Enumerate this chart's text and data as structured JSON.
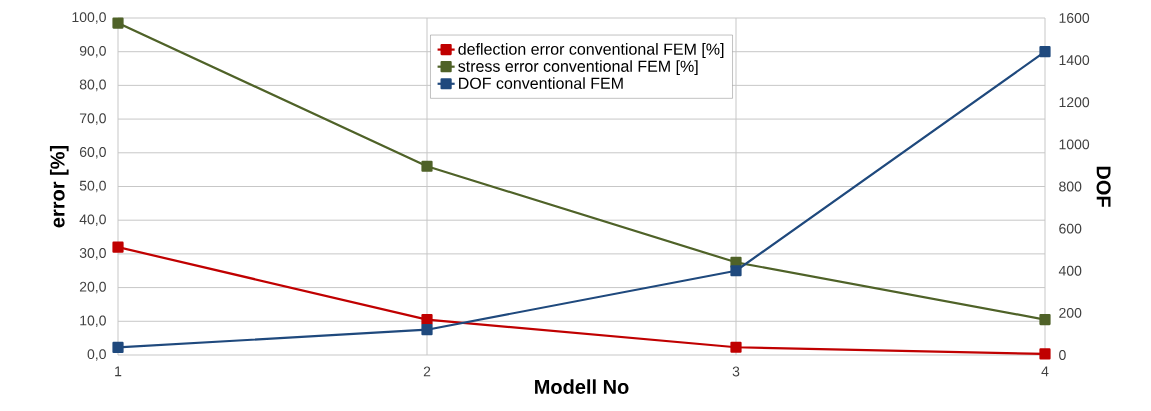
{
  "chart_data": {
    "type": "line",
    "xlabel": "Modell No",
    "ylabel": "error [%]",
    "y2label": "DOF",
    "x": [
      1,
      2,
      3,
      4
    ],
    "xlim": [
      1,
      4
    ],
    "xticks": [
      1,
      2,
      3,
      4
    ],
    "ylim": [
      0,
      100
    ],
    "yticks": [
      {
        "value": 0,
        "label": "0,0"
      },
      {
        "value": 10,
        "label": "10,0"
      },
      {
        "value": 20,
        "label": "20,0"
      },
      {
        "value": 30,
        "label": "30,0"
      },
      {
        "value": 40,
        "label": "40,0"
      },
      {
        "value": 50,
        "label": "50,0"
      },
      {
        "value": 60,
        "label": "60,0"
      },
      {
        "value": 70,
        "label": "70,0"
      },
      {
        "value": 80,
        "label": "80,0"
      },
      {
        "value": 90,
        "label": "90,0"
      },
      {
        "value": 100,
        "label": "100,0"
      }
    ],
    "y2lim": [
      0,
      1600
    ],
    "y2ticks": [
      0,
      200,
      400,
      600,
      800,
      1000,
      1200,
      1400,
      1600
    ],
    "series": [
      {
        "name": "deflection error conventional FEM [%]",
        "color": "#c00000",
        "values": [
          32,
          10.5,
          2.3,
          0.3
        ]
      },
      {
        "name": "stress error  conventional FEM [%]",
        "color": "#4f6228",
        "values": [
          98.5,
          56,
          27.5,
          10.5
        ]
      },
      {
        "name": "DOF  conventional FEM",
        "color": "#1f497d",
        "values": [
          36,
          120,
          400,
          1440
        ],
        "axis": "y2"
      }
    ],
    "grid": true,
    "legend": "top",
    "marker": "square",
    "line_style": "solid"
  }
}
